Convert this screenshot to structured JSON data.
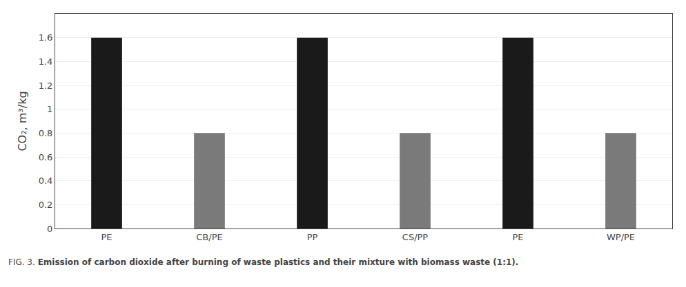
{
  "chart_data": {
    "type": "bar",
    "categories": [
      "PE",
      "CB/PE",
      "PP",
      "CS/PP",
      "PE",
      "WP/PE"
    ],
    "values": [
      1.6,
      0.8,
      1.6,
      0.8,
      1.6,
      0.8
    ],
    "colors": [
      "#1a1a1a",
      "#7a7a7a",
      "#1a1a1a",
      "#7a7a7a",
      "#1a1a1a",
      "#7a7a7a"
    ],
    "ylabel": "CO₂, m³/kg",
    "ylim": [
      0,
      1.8
    ],
    "yticks": [
      0,
      0.2,
      0.4,
      0.6,
      0.8,
      1,
      1.2,
      1.4,
      1.6
    ],
    "grid": true,
    "annotations": [
      "FIG. 3. ",
      "Emission of carbon dioxide after burning of waste plastics and their mixture with biomass waste (1:1)."
    ]
  }
}
